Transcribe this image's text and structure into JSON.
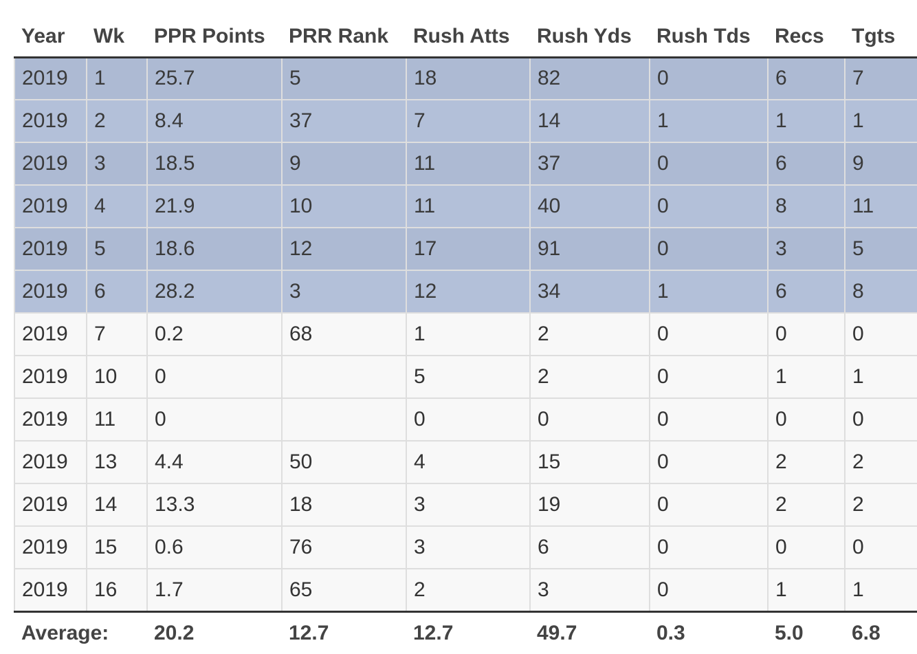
{
  "table": {
    "headers": [
      "Year",
      "Wk",
      "PPR Points",
      "PRR Rank",
      "Rush Atts",
      "Rush Yds",
      "Rush Tds",
      "Recs",
      "Tgts"
    ],
    "highlight_color": "#adbad3",
    "rows": [
      {
        "highlighted": true,
        "cells": [
          "2019",
          "1",
          "25.7",
          "5",
          "18",
          "82",
          "0",
          "6",
          "7"
        ]
      },
      {
        "highlighted": true,
        "cells": [
          "2019",
          "2",
          "8.4",
          "37",
          "7",
          "14",
          "1",
          "1",
          "1"
        ]
      },
      {
        "highlighted": true,
        "cells": [
          "2019",
          "3",
          "18.5",
          "9",
          "11",
          "37",
          "0",
          "6",
          "9"
        ]
      },
      {
        "highlighted": true,
        "cells": [
          "2019",
          "4",
          "21.9",
          "10",
          "11",
          "40",
          "0",
          "8",
          "11"
        ]
      },
      {
        "highlighted": true,
        "cells": [
          "2019",
          "5",
          "18.6",
          "12",
          "17",
          "91",
          "0",
          "3",
          "5"
        ]
      },
      {
        "highlighted": true,
        "cells": [
          "2019",
          "6",
          "28.2",
          "3",
          "12",
          "34",
          "1",
          "6",
          "8"
        ]
      },
      {
        "highlighted": false,
        "cells": [
          "2019",
          "7",
          "0.2",
          "68",
          "1",
          "2",
          "0",
          "0",
          "0"
        ]
      },
      {
        "highlighted": false,
        "cells": [
          "2019",
          "10",
          "0",
          "",
          "5",
          "2",
          "0",
          "1",
          "1"
        ]
      },
      {
        "highlighted": false,
        "cells": [
          "2019",
          "11",
          "0",
          "",
          "0",
          "0",
          "0",
          "0",
          "0"
        ]
      },
      {
        "highlighted": false,
        "cells": [
          "2019",
          "13",
          "4.4",
          "50",
          "4",
          "15",
          "0",
          "2",
          "2"
        ]
      },
      {
        "highlighted": false,
        "cells": [
          "2019",
          "14",
          "13.3",
          "18",
          "3",
          "19",
          "0",
          "2",
          "2"
        ]
      },
      {
        "highlighted": false,
        "cells": [
          "2019",
          "15",
          "0.6",
          "76",
          "3",
          "6",
          "0",
          "0",
          "0"
        ]
      },
      {
        "highlighted": false,
        "cells": [
          "2019",
          "16",
          "1.7",
          "65",
          "2",
          "3",
          "0",
          "1",
          "1"
        ]
      }
    ],
    "footer": {
      "label": "Average:",
      "values": [
        "20.2",
        "12.7",
        "12.7",
        "49.7",
        "0.3",
        "5.0",
        "6.8"
      ]
    }
  }
}
